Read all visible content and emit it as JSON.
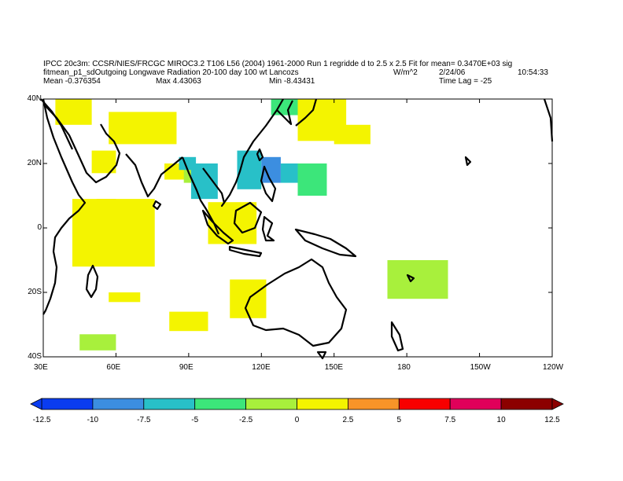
{
  "header": {
    "line1": "IPCC 20c3m: CCSR/NIES/FRCGC MIROC3.2 T106 L56 (2004) 1961-2000 Run 1 regridde d to 2.5 x 2.5 Fit for mean= 0.3470E+03 sig",
    "line2_left": "fitmean_p1_sdOutgoing Longwave Radiation 20-100 day 100 wt Lancozs",
    "line2_units": "W/m^2",
    "line2_date": "2/24/06",
    "line2_time": "10:54:33",
    "line3_mean": "Mean -0.376354",
    "line3_max": "Max 4.43063",
    "line3_min": "Min -8.43431",
    "line3_lag": "Time Lag = -25"
  },
  "map": {
    "lon_range": [
      30,
      240
    ],
    "lat_range": [
      -40,
      40
    ],
    "lon_ticks": [
      "30E",
      "60E",
      "90E",
      "120E",
      "150E",
      "180",
      "150W",
      "120W"
    ],
    "lat_ticks": [
      "40N",
      "20N",
      "0",
      "20S",
      "40S"
    ]
  },
  "colorbar": {
    "labels": [
      "-12.5",
      "-10",
      "-7.5",
      "-5",
      "-2.5",
      "0",
      "2.5",
      "5",
      "7.5",
      "10",
      "12.5"
    ],
    "colors": [
      "#0a3cf0",
      "#3c8ee0",
      "#28c0c8",
      "#3ce67a",
      "#a8f03c",
      "#f4f400",
      "#f89428",
      "#f80000",
      "#e0005a",
      "#8c0000"
    ]
  },
  "chart_data": {
    "type": "heatmap",
    "units": "W/m^2",
    "xlim": [
      30,
      240
    ],
    "ylim": [
      -40,
      40
    ],
    "levels": [
      -12.5,
      -10,
      -7.5,
      -5,
      -2.5,
      0,
      2.5,
      5,
      7.5,
      10,
      12.5
    ],
    "regions": [
      {
        "lon": [
          35,
          50
        ],
        "lat": [
          32,
          40
        ],
        "value": 1.2
      },
      {
        "lon": [
          57,
          85
        ],
        "lat": [
          26,
          36
        ],
        "value": 1.3
      },
      {
        "lon": [
          50,
          60
        ],
        "lat": [
          17,
          24
        ],
        "value": 1.2
      },
      {
        "lon": [
          80,
          92
        ],
        "lat": [
          15,
          20
        ],
        "value": 1.1
      },
      {
        "lon": [
          88,
          93
        ],
        "lat": [
          14,
          20
        ],
        "value": -1.0
      },
      {
        "lon": [
          91,
          102
        ],
        "lat": [
          9,
          20
        ],
        "value": -5.8
      },
      {
        "lon": [
          86,
          93
        ],
        "lat": [
          18,
          22
        ],
        "value": -5.2
      },
      {
        "lon": [
          110,
          120
        ],
        "lat": [
          12,
          24
        ],
        "value": -5.6
      },
      {
        "lon": [
          120,
          128
        ],
        "lat": [
          14,
          22
        ],
        "value": -8.3
      },
      {
        "lon": [
          128,
          135
        ],
        "lat": [
          14,
          20
        ],
        "value": -6.5
      },
      {
        "lon": [
          135,
          147
        ],
        "lat": [
          10,
          20
        ],
        "value": -4.2
      },
      {
        "lon": [
          124,
          135
        ],
        "lat": [
          35,
          40
        ],
        "value": -3.5
      },
      {
        "lon": [
          143,
          153
        ],
        "lat": [
          30,
          35
        ],
        "value": 4.0
      },
      {
        "lon": [
          135,
          155
        ],
        "lat": [
          27,
          40
        ],
        "value": 1.5
      },
      {
        "lon": [
          150,
          165
        ],
        "lat": [
          26,
          32
        ],
        "value": 1.3
      },
      {
        "lon": [
          52,
          60
        ],
        "lat": [
          2,
          9
        ],
        "value": 3.0
      },
      {
        "lon": [
          58,
          73
        ],
        "lat": [
          -5,
          5
        ],
        "value": 3.8
      },
      {
        "lon": [
          42,
          76
        ],
        "lat": [
          -12,
          9
        ],
        "value": 1.5
      },
      {
        "lon": [
          102,
          107
        ],
        "lat": [
          -3,
          4
        ],
        "value": 3.5
      },
      {
        "lon": [
          110,
          115
        ],
        "lat": [
          -3,
          1
        ],
        "value": 3.2
      },
      {
        "lon": [
          98,
          118
        ],
        "lat": [
          -5,
          8
        ],
        "value": 1.4
      },
      {
        "lon": [
          172,
          197
        ],
        "lat": [
          -22,
          -10
        ],
        "value": -1.4
      },
      {
        "lon": [
          107,
          122
        ],
        "lat": [
          -28,
          -16
        ],
        "value": 1.2
      },
      {
        "lon": [
          82,
          98
        ],
        "lat": [
          -32,
          -26
        ],
        "value": 1.3
      },
      {
        "lon": [
          57,
          70
        ],
        "lat": [
          -23,
          -20
        ],
        "value": 1.0
      },
      {
        "lon": [
          45,
          60
        ],
        "lat": [
          -38,
          -33
        ],
        "value": -1.2
      }
    ]
  }
}
